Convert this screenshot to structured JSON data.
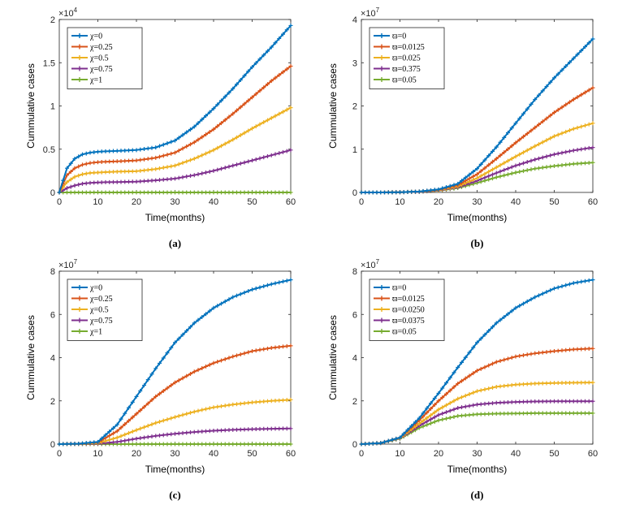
{
  "chart_data": [
    {
      "panel": "a",
      "type": "line",
      "caption": "(a)",
      "xlabel": "Time(months)",
      "ylabel": "Cummulative cases",
      "y_exponent_base": "×10",
      "y_exponent_power": "4",
      "xlim": [
        0,
        60
      ],
      "ylim": [
        0,
        2
      ],
      "xticks": [
        0,
        10,
        20,
        30,
        40,
        50,
        60
      ],
      "yticks": [
        0,
        0.5,
        1,
        1.5,
        2
      ],
      "ytick_labels": [
        "0",
        "0.5",
        "1",
        "1.5",
        "2"
      ],
      "x": [
        0,
        2,
        4,
        6,
        8,
        10,
        12,
        15,
        20,
        25,
        30,
        35,
        40,
        45,
        50,
        55,
        60
      ],
      "legend": {
        "placement": "top-left"
      },
      "series": [
        {
          "name": "χ=0",
          "color": "#0072BD",
          "values": [
            0,
            0.28,
            0.39,
            0.44,
            0.46,
            0.47,
            0.475,
            0.48,
            0.49,
            0.52,
            0.6,
            0.76,
            0.97,
            1.2,
            1.45,
            1.68,
            1.93
          ]
        },
        {
          "name": "χ=0.25",
          "color": "#D95319",
          "values": [
            0,
            0.2,
            0.28,
            0.32,
            0.34,
            0.35,
            0.355,
            0.36,
            0.37,
            0.4,
            0.46,
            0.58,
            0.73,
            0.91,
            1.1,
            1.29,
            1.46
          ]
        },
        {
          "name": "χ=0.5",
          "color": "#EDB120",
          "values": [
            0,
            0.12,
            0.18,
            0.21,
            0.225,
            0.23,
            0.235,
            0.24,
            0.245,
            0.27,
            0.31,
            0.39,
            0.49,
            0.61,
            0.74,
            0.86,
            0.98
          ]
        },
        {
          "name": "χ=0.75",
          "color": "#7E2F8E",
          "values": [
            0,
            0.05,
            0.08,
            0.1,
            0.11,
            0.115,
            0.118,
            0.12,
            0.125,
            0.14,
            0.16,
            0.2,
            0.25,
            0.31,
            0.37,
            0.43,
            0.49
          ]
        },
        {
          "name": "χ=1",
          "color": "#77AC30",
          "values": [
            0,
            0,
            0,
            0,
            0,
            0,
            0,
            0,
            0,
            0,
            0,
            0,
            0,
            0,
            0,
            0,
            0
          ]
        }
      ]
    },
    {
      "panel": "b",
      "type": "line",
      "caption": "(b)",
      "xlabel": "Time(months)",
      "ylabel": "Cummulative cases",
      "y_exponent_base": "×10",
      "y_exponent_power": "7",
      "xlim": [
        0,
        60
      ],
      "ylim": [
        0,
        4
      ],
      "xticks": [
        0,
        10,
        20,
        30,
        40,
        50,
        60
      ],
      "yticks": [
        0,
        1,
        2,
        3,
        4
      ],
      "ytick_labels": [
        "0",
        "1",
        "2",
        "3",
        "4"
      ],
      "x": [
        0,
        5,
        10,
        15,
        20,
        25,
        30,
        35,
        40,
        45,
        50,
        55,
        60
      ],
      "legend": {
        "placement": "top-left"
      },
      "series": [
        {
          "name": "ϖ=0",
          "color": "#0072BD",
          "values": [
            0,
            0,
            0.005,
            0.02,
            0.07,
            0.2,
            0.55,
            1.05,
            1.6,
            2.15,
            2.65,
            3.1,
            3.55
          ]
        },
        {
          "name": "ϖ=0.0125",
          "color": "#D95319",
          "values": [
            0,
            0,
            0.005,
            0.02,
            0.06,
            0.17,
            0.42,
            0.78,
            1.15,
            1.5,
            1.85,
            2.15,
            2.42
          ]
        },
        {
          "name": "ϖ=0.025",
          "color": "#EDB120",
          "values": [
            0,
            0,
            0.005,
            0.02,
            0.05,
            0.14,
            0.33,
            0.58,
            0.83,
            1.07,
            1.3,
            1.47,
            1.6
          ]
        },
        {
          "name": "ϖ=0.375",
          "color": "#7E2F8E",
          "values": [
            0,
            0,
            0.005,
            0.015,
            0.045,
            0.12,
            0.27,
            0.45,
            0.62,
            0.76,
            0.88,
            0.97,
            1.04
          ]
        },
        {
          "name": "ϖ=0.05",
          "color": "#77AC30",
          "values": [
            0,
            0,
            0.005,
            0.015,
            0.04,
            0.1,
            0.22,
            0.35,
            0.46,
            0.55,
            0.61,
            0.66,
            0.69
          ]
        }
      ]
    },
    {
      "panel": "c",
      "type": "line",
      "caption": "(c)",
      "xlabel": "Time(months)",
      "ylabel": "Cummulative cases",
      "y_exponent_base": "×10",
      "y_exponent_power": "7",
      "xlim": [
        0,
        60
      ],
      "ylim": [
        0,
        8
      ],
      "xticks": [
        0,
        10,
        20,
        30,
        40,
        50,
        60
      ],
      "yticks": [
        0,
        2,
        4,
        6,
        8
      ],
      "ytick_labels": [
        "0",
        "2",
        "4",
        "6",
        "8"
      ],
      "x": [
        0,
        5,
        10,
        15,
        20,
        25,
        30,
        35,
        40,
        45,
        50,
        55,
        60
      ],
      "legend": {
        "placement": "top-left"
      },
      "series": [
        {
          "name": "χ=0",
          "color": "#0072BD",
          "values": [
            0,
            0.02,
            0.1,
            0.9,
            2.2,
            3.5,
            4.7,
            5.6,
            6.3,
            6.8,
            7.15,
            7.4,
            7.6
          ]
        },
        {
          "name": "χ=0.25",
          "color": "#D95319",
          "values": [
            0,
            0.02,
            0.08,
            0.6,
            1.4,
            2.2,
            2.85,
            3.35,
            3.75,
            4.05,
            4.3,
            4.45,
            4.55
          ]
        },
        {
          "name": "χ=0.5",
          "color": "#EDB120",
          "values": [
            0,
            0.01,
            0.05,
            0.3,
            0.65,
            0.98,
            1.25,
            1.5,
            1.7,
            1.83,
            1.93,
            2.0,
            2.05
          ]
        },
        {
          "name": "χ=0.75",
          "color": "#7E2F8E",
          "values": [
            0,
            0.005,
            0.02,
            0.1,
            0.25,
            0.38,
            0.48,
            0.56,
            0.62,
            0.66,
            0.69,
            0.71,
            0.72
          ]
        },
        {
          "name": "χ=1",
          "color": "#77AC30",
          "values": [
            0,
            0,
            0,
            0,
            0,
            0,
            0,
            0,
            0,
            0,
            0,
            0,
            0
          ]
        }
      ]
    },
    {
      "panel": "d",
      "type": "line",
      "caption": "(d)",
      "xlabel": "Time(months)",
      "ylabel": "Cummulative cases",
      "y_exponent_base": "×10",
      "y_exponent_power": "7",
      "xlim": [
        0,
        60
      ],
      "ylim": [
        0,
        8
      ],
      "xticks": [
        0,
        10,
        20,
        30,
        40,
        50,
        60
      ],
      "yticks": [
        0,
        2,
        4,
        6,
        8
      ],
      "ytick_labels": [
        "0",
        "2",
        "4",
        "6",
        "8"
      ],
      "x": [
        0,
        5,
        10,
        15,
        20,
        25,
        30,
        35,
        40,
        45,
        50,
        55,
        60
      ],
      "legend": {
        "placement": "top-left"
      },
      "series": [
        {
          "name": "ϖ=0",
          "color": "#0072BD",
          "values": [
            0,
            0.05,
            0.3,
            1.2,
            2.35,
            3.55,
            4.7,
            5.6,
            6.3,
            6.8,
            7.2,
            7.45,
            7.6
          ]
        },
        {
          "name": "ϖ=0.0125",
          "color": "#D95319",
          "values": [
            0,
            0.05,
            0.3,
            1.1,
            2.0,
            2.8,
            3.4,
            3.8,
            4.05,
            4.2,
            4.3,
            4.38,
            4.42
          ]
        },
        {
          "name": "ϖ=0.0250",
          "color": "#EDB120",
          "values": [
            0,
            0.05,
            0.28,
            0.95,
            1.6,
            2.1,
            2.45,
            2.65,
            2.75,
            2.8,
            2.83,
            2.84,
            2.85
          ]
        },
        {
          "name": "ϖ=0.0375",
          "color": "#7E2F8E",
          "values": [
            0,
            0.05,
            0.27,
            0.85,
            1.35,
            1.67,
            1.83,
            1.91,
            1.95,
            1.97,
            1.98,
            1.98,
            1.98
          ]
        },
        {
          "name": "ϖ=0.05",
          "color": "#77AC30",
          "values": [
            0,
            0.05,
            0.25,
            0.75,
            1.1,
            1.3,
            1.38,
            1.41,
            1.42,
            1.43,
            1.43,
            1.43,
            1.43
          ]
        }
      ]
    }
  ]
}
